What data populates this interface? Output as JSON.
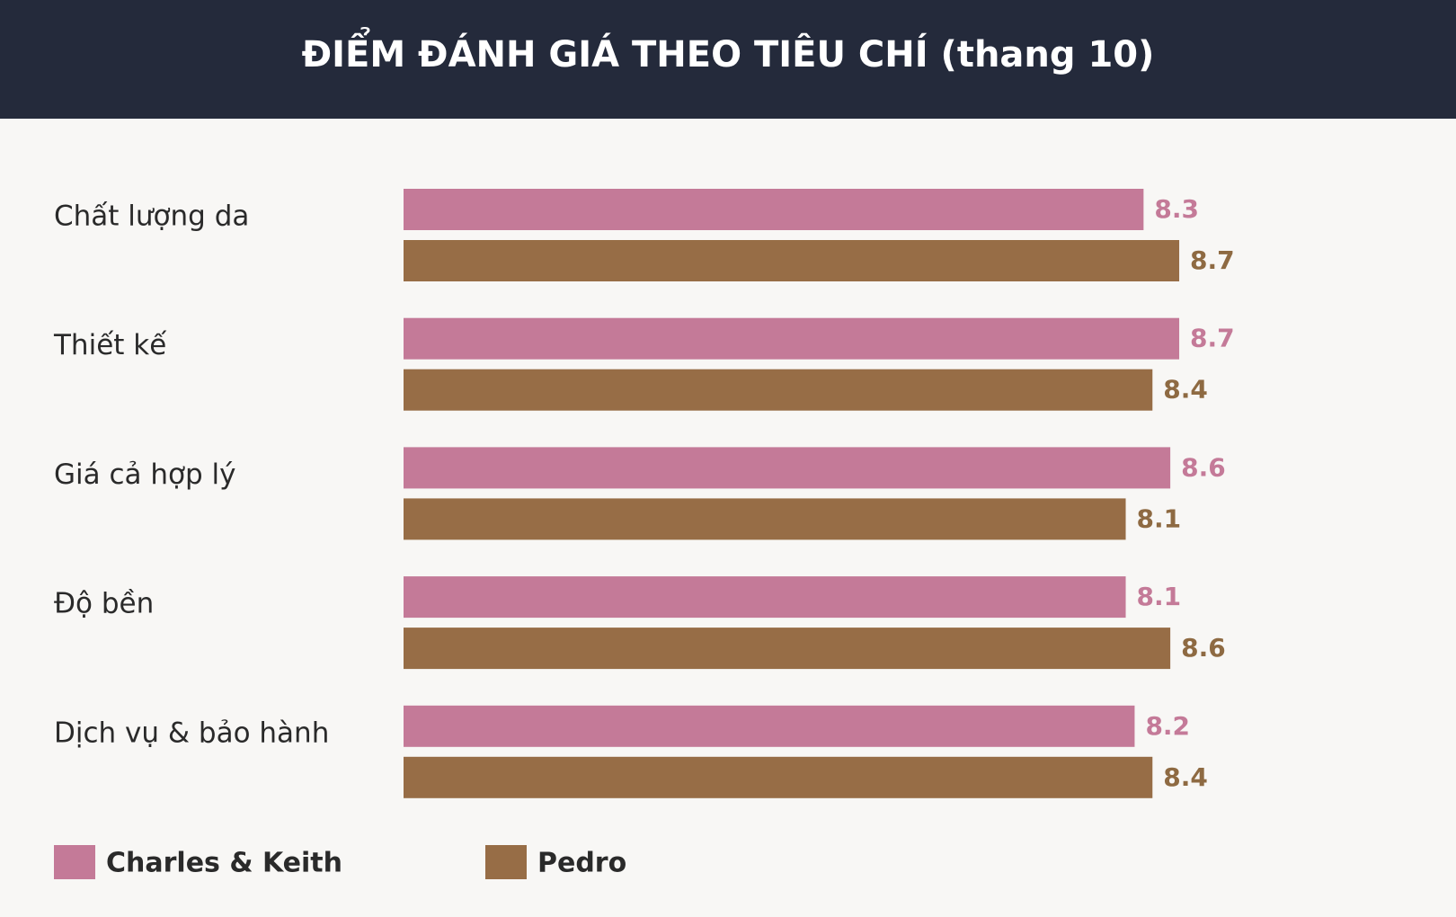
{
  "chart_data": {
    "type": "hbar",
    "title": "ĐIỂM ĐÁNH GIÁ THEO TIÊU CHÍ (thang 10)",
    "categories": [
      "Chất lượng da",
      "Thiết kế",
      "Giá cả hợp lý",
      "Độ bền",
      "Dịch vụ & bảo hành"
    ],
    "series": [
      {
        "name": "Charles & Keith",
        "color": "#c47a98",
        "values": [
          8.3,
          8.7,
          8.6,
          8.1,
          8.2
        ]
      },
      {
        "name": "Pedro",
        "color": "#976d46",
        "values": [
          8.7,
          8.4,
          8.1,
          8.6,
          8.4
        ]
      }
    ],
    "xlim": [
      0,
      10
    ],
    "grid": false
  }
}
